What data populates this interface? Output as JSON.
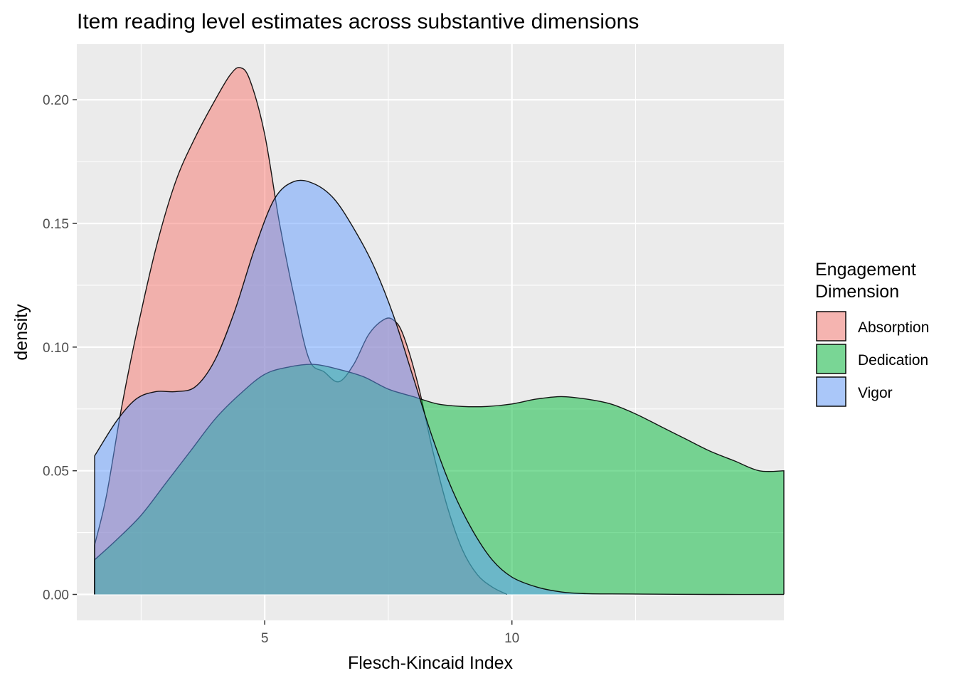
{
  "chart_data": {
    "type": "area",
    "title": "Item reading level estimates across substantive dimensions",
    "xlabel": "Flesch-Kincaid Index",
    "ylabel": "density",
    "xlim": [
      1.2,
      15.5
    ],
    "ylim": [
      -0.0105,
      0.2225
    ],
    "x_ticks": [
      5,
      10
    ],
    "x_tick_labels": [
      "5",
      "10"
    ],
    "y_ticks": [
      0.0,
      0.05,
      0.1,
      0.15,
      0.2
    ],
    "y_tick_labels": [
      "0.00",
      "0.05",
      "0.10",
      "0.15",
      "0.20"
    ],
    "grid": true,
    "legend": {
      "title_lines": [
        "Engagement",
        "Dimension"
      ],
      "position": "right"
    },
    "series": [
      {
        "name": "Absorption",
        "color": "#F8766D",
        "x": [
          1.56,
          1.8,
          2.1,
          2.4,
          2.8,
          3.2,
          3.6,
          4.0,
          4.3,
          4.5,
          4.7,
          5.0,
          5.3,
          5.6,
          5.9,
          6.2,
          6.5,
          6.8,
          7.1,
          7.4,
          7.6,
          7.8,
          8.1,
          8.4,
          8.7,
          9.0,
          9.3,
          9.6,
          9.9
        ],
        "y": [
          0.02,
          0.04,
          0.075,
          0.105,
          0.14,
          0.167,
          0.185,
          0.2,
          0.21,
          0.213,
          0.208,
          0.186,
          0.15,
          0.12,
          0.095,
          0.09,
          0.086,
          0.093,
          0.105,
          0.111,
          0.111,
          0.105,
          0.085,
          0.058,
          0.035,
          0.018,
          0.008,
          0.003,
          0.0
        ]
      },
      {
        "name": "Dedication",
        "color": "#00BA38",
        "x": [
          1.56,
          2.0,
          2.5,
          3.0,
          3.5,
          4.0,
          4.5,
          5.0,
          5.5,
          6.0,
          6.5,
          7.0,
          7.5,
          8.0,
          8.5,
          9.0,
          9.5,
          10.0,
          10.5,
          11.0,
          11.5,
          12.0,
          12.5,
          13.0,
          13.5,
          14.0,
          14.5,
          15.0,
          15.5
        ],
        "y": [
          0.014,
          0.022,
          0.032,
          0.045,
          0.058,
          0.071,
          0.081,
          0.089,
          0.092,
          0.093,
          0.091,
          0.088,
          0.083,
          0.08,
          0.077,
          0.076,
          0.076,
          0.077,
          0.079,
          0.08,
          0.079,
          0.077,
          0.073,
          0.068,
          0.063,
          0.058,
          0.054,
          0.05,
          0.05
        ]
      },
      {
        "name": "Vigor",
        "color": "#619CFF",
        "x": [
          1.56,
          2.0,
          2.4,
          2.8,
          3.2,
          3.6,
          4.0,
          4.4,
          4.8,
          5.2,
          5.6,
          6.0,
          6.4,
          6.8,
          7.2,
          7.6,
          8.0,
          8.4,
          8.8,
          9.2,
          9.6,
          10.0,
          10.5,
          11.0,
          11.5,
          12.0,
          13.0,
          14.0,
          15.5
        ],
        "y": [
          0.056,
          0.07,
          0.079,
          0.082,
          0.082,
          0.084,
          0.095,
          0.115,
          0.14,
          0.16,
          0.167,
          0.166,
          0.16,
          0.148,
          0.133,
          0.113,
          0.088,
          0.063,
          0.042,
          0.026,
          0.014,
          0.007,
          0.003,
          0.001,
          0.0003,
          0.0002,
          0.0001,
          0.0,
          0.0
        ]
      }
    ]
  }
}
